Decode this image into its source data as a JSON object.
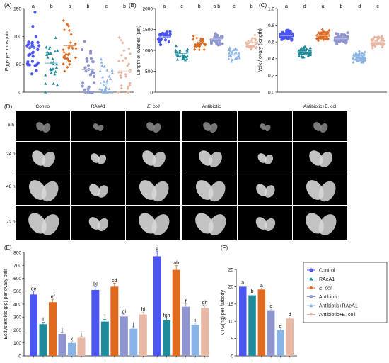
{
  "colors": {
    "control": "#4a55f2",
    "raea1": "#1f8a99",
    "ecoli": "#e06b1f",
    "antibiotic": "#8f95cf",
    "antibiotic_raea1": "#8ab4e6",
    "antibiotic_ecoli": "#e9b8a4"
  },
  "legend": {
    "items": [
      "Control",
      "RAeA1",
      "E. coli",
      "Antibiotic",
      "Antibiotic+RAeA1",
      "Antibiotic+E. coli"
    ]
  },
  "panel_d": {
    "label": "(D)",
    "columns": [
      "Control",
      "RAeA1",
      "E. coli",
      "Antibiotic",
      "Antibiotic+E. coli"
    ],
    "rows": [
      "6 h",
      "24 h",
      "48 h",
      "72 h"
    ]
  },
  "chart_data": [
    {
      "panel": "(A)",
      "type": "scatter",
      "ylabel": "Eggs per mosquito",
      "ylim": [
        0,
        150
      ],
      "yticks": [
        0,
        50,
        100,
        150
      ],
      "grid": false,
      "groups": [
        "Control",
        "RAeA1",
        "E. coli",
        "Antibiotic",
        "Antibiotic+RAeA1",
        "Antibiotic+E. coli"
      ],
      "means": [
        80,
        52,
        83,
        40,
        15,
        38
      ],
      "letters": [
        "a",
        "b",
        "a",
        "b",
        "c",
        "b"
      ]
    },
    {
      "panel": "(B)",
      "type": "scatter",
      "ylabel": "Length of ovaries (μm)",
      "ylim": [
        0,
        2000
      ],
      "yticks": [
        0,
        500,
        1000,
        1500,
        2000
      ],
      "grid": false,
      "groups": [
        "Control",
        "RAeA1",
        "E. coli",
        "Antibiotic",
        "Antibiotic+RAeA1",
        "Antibiotic+E. coli"
      ],
      "means": [
        1320,
        920,
        1180,
        1270,
        900,
        1200
      ],
      "letters": [
        "a",
        "c",
        "b",
        "a b",
        "c",
        "b"
      ]
    },
    {
      "panel": "(C)",
      "type": "scatter",
      "ylabel": "Yolk / ovary (length)",
      "ylim": [
        0,
        1.0
      ],
      "yticks": [
        0.0,
        0.2,
        0.4,
        0.6,
        0.8,
        1.0
      ],
      "grid": false,
      "groups": [
        "Control",
        "RAeA1",
        "E. coli",
        "Antibiotic",
        "Antibiotic+RAeA1",
        "Antibiotic+E. coli"
      ],
      "means": [
        0.68,
        0.48,
        0.68,
        0.64,
        0.42,
        0.6
      ],
      "letters": [
        "a",
        "d",
        "a",
        "b",
        "d",
        "c"
      ]
    },
    {
      "panel": "(E)",
      "type": "bar",
      "ylabel": "Ecdysteroids (pg) per ovary pair",
      "ylim": [
        0,
        800
      ],
      "yticks": [
        0,
        100,
        200,
        300,
        400,
        500,
        600,
        700,
        800
      ],
      "clusters": 3,
      "series": [
        {
          "name": "Control",
          "values": [
            475,
            510,
            770
          ]
        },
        {
          "name": "RAeA1",
          "values": [
            245,
            265,
            275
          ]
        },
        {
          "name": "E. coli",
          "values": [
            415,
            535,
            665
          ]
        },
        {
          "name": "Antibiotic",
          "values": [
            170,
            305,
            380
          ]
        },
        {
          "name": "Antibiotic+RAeA1",
          "values": [
            100,
            210,
            240
          ]
        },
        {
          "name": "Antibiotic+E. coli",
          "values": [
            140,
            320,
            370
          ]
        }
      ],
      "letters": [
        [
          "de",
          "i",
          "ef",
          "j",
          "k",
          "j"
        ],
        [
          "bc",
          "i",
          "cd",
          "gi",
          "j",
          "hi"
        ],
        [
          "a",
          "fgh",
          "ab",
          "f",
          "i",
          "gh"
        ]
      ]
    },
    {
      "panel": "(F)",
      "type": "bar",
      "ylabel": "VTG(ng) per fatbody",
      "ylim": [
        0,
        25
      ],
      "yticks": [
        0,
        5,
        10,
        15,
        20,
        25
      ],
      "series": [
        {
          "name": "Control",
          "values": [
            20.0
          ]
        },
        {
          "name": "RAeA1",
          "values": [
            17.5
          ]
        },
        {
          "name": "E. coli",
          "values": [
            19.2
          ]
        },
        {
          "name": "Antibiotic",
          "values": [
            13.2
          ]
        },
        {
          "name": "Antibiotic+RAeA1",
          "values": [
            7.5
          ]
        },
        {
          "name": "Antibiotic+E. coli",
          "values": [
            10.8
          ]
        }
      ],
      "letters": [
        "a",
        "b",
        "a",
        "c",
        "e",
        "d"
      ]
    }
  ]
}
